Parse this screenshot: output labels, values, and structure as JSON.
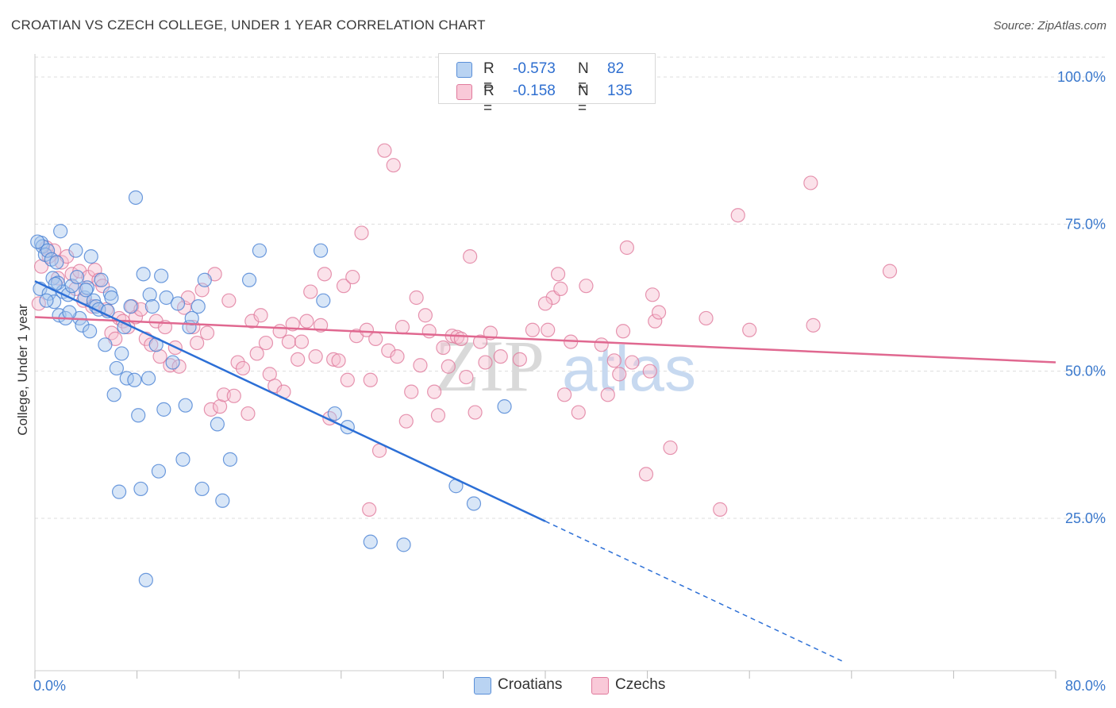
{
  "title": "CROATIAN VS CZECH COLLEGE, UNDER 1 YEAR CORRELATION CHART",
  "source": "Source: ZipAtlas.com",
  "watermark": {
    "zip": "ZIP",
    "atlas": "atlas"
  },
  "legend": {
    "r_label": "R =",
    "n_label": "N =",
    "rows": [
      {
        "r": "-0.573",
        "n": "82",
        "color": "#a9c8ee",
        "border": "#5a8fd8"
      },
      {
        "r": "-0.158",
        "n": "135",
        "color": "#f6b8cb",
        "border": "#e07a9c"
      }
    ]
  },
  "colors": {
    "croatians_fill": "#a9c8ee",
    "croatians_stroke": "#4a82d4",
    "croatians_line": "#2c6fd6",
    "czechs_fill": "#f6bfd0",
    "czechs_stroke": "#e07a9c",
    "czechs_line": "#e06890",
    "grid": "#dddddd",
    "tick_label": "#3a78cc"
  },
  "chart_data": {
    "type": "scatter",
    "title": "CROATIAN VS CZECH COLLEGE, UNDER 1 YEAR CORRELATION CHART",
    "xlabel": "",
    "ylabel": "College, Under 1 year",
    "xlim": [
      0,
      80
    ],
    "ylim": [
      0,
      102
    ],
    "x_tick_labels": [
      "0.0%",
      "80.0%"
    ],
    "y_ticks": [
      25,
      50,
      75,
      100
    ],
    "y_tick_labels": [
      "25.0%",
      "50.0%",
      "75.0%",
      "100.0%"
    ],
    "series": [
      {
        "name": "Croatians",
        "r": -0.573,
        "n": 82,
        "trend": {
          "x0": 0,
          "y0": 65.3,
          "x1": 40,
          "y1": 24.5,
          "dashed_to_x": 63.5,
          "dashed_to_y": 0.5
        },
        "points": [
          [
            0.4,
            64.0
          ],
          [
            0.5,
            71.8
          ],
          [
            0.6,
            71.2
          ],
          [
            0.8,
            69.8
          ],
          [
            1.0,
            70.5
          ],
          [
            1.1,
            63.2
          ],
          [
            1.3,
            69.0
          ],
          [
            1.4,
            65.8
          ],
          [
            1.5,
            61.8
          ],
          [
            1.7,
            68.5
          ],
          [
            1.8,
            65.0
          ],
          [
            1.9,
            59.5
          ],
          [
            2.0,
            73.8
          ],
          [
            2.2,
            63.5
          ],
          [
            2.4,
            59.0
          ],
          [
            2.6,
            63.0
          ],
          [
            2.9,
            64.5
          ],
          [
            3.2,
            70.5
          ],
          [
            3.5,
            59.0
          ],
          [
            3.7,
            57.8
          ],
          [
            3.9,
            62.5
          ],
          [
            4.1,
            64.2
          ],
          [
            4.3,
            56.8
          ],
          [
            4.4,
            69.5
          ],
          [
            4.6,
            62.0
          ],
          [
            4.8,
            61.0
          ],
          [
            5.0,
            60.5
          ],
          [
            5.2,
            65.5
          ],
          [
            5.5,
            54.5
          ],
          [
            5.9,
            63.2
          ],
          [
            6.0,
            62.5
          ],
          [
            6.2,
            46.0
          ],
          [
            6.4,
            50.5
          ],
          [
            6.6,
            29.5
          ],
          [
            6.8,
            53.0
          ],
          [
            7.0,
            57.5
          ],
          [
            7.2,
            48.8
          ],
          [
            7.5,
            61.0
          ],
          [
            7.8,
            48.5
          ],
          [
            7.9,
            79.5
          ],
          [
            8.1,
            42.5
          ],
          [
            8.3,
            30.0
          ],
          [
            8.5,
            66.5
          ],
          [
            8.7,
            14.5
          ],
          [
            8.9,
            48.8
          ],
          [
            9.0,
            63.0
          ],
          [
            9.2,
            61.0
          ],
          [
            9.5,
            54.5
          ],
          [
            9.7,
            33.0
          ],
          [
            9.9,
            66.2
          ],
          [
            10.1,
            43.5
          ],
          [
            10.3,
            62.5
          ],
          [
            10.8,
            51.5
          ],
          [
            11.2,
            61.5
          ],
          [
            11.6,
            35.0
          ],
          [
            11.8,
            44.2
          ],
          [
            12.1,
            57.5
          ],
          [
            12.3,
            59.0
          ],
          [
            12.8,
            61.0
          ],
          [
            13.1,
            30.0
          ],
          [
            13.3,
            65.5
          ],
          [
            14.3,
            41.0
          ],
          [
            14.7,
            28.0
          ],
          [
            15.3,
            35.0
          ],
          [
            16.8,
            65.5
          ],
          [
            17.6,
            70.5
          ],
          [
            22.4,
            70.5
          ],
          [
            22.6,
            62.0
          ],
          [
            23.5,
            42.8
          ],
          [
            24.5,
            40.5
          ],
          [
            26.3,
            21.0
          ],
          [
            28.9,
            20.5
          ],
          [
            33.0,
            30.5
          ],
          [
            34.4,
            27.5
          ],
          [
            36.8,
            44.0
          ],
          [
            0.2,
            72.0
          ],
          [
            0.9,
            62.0
          ],
          [
            2.7,
            60.0
          ],
          [
            3.3,
            66.0
          ],
          [
            1.6,
            64.8
          ],
          [
            4.0,
            63.8
          ],
          [
            5.7,
            60.2
          ]
        ]
      },
      {
        "name": "Czechs",
        "r": -0.158,
        "n": 135,
        "trend": {
          "x0": 0,
          "y0": 59.2,
          "x1": 80,
          "y1": 51.5
        },
        "points": [
          [
            0.3,
            61.5
          ],
          [
            0.5,
            67.8
          ],
          [
            0.9,
            71.0
          ],
          [
            1.1,
            69.5
          ],
          [
            1.5,
            70.5
          ],
          [
            1.8,
            65.8
          ],
          [
            2.1,
            68.5
          ],
          [
            2.5,
            69.5
          ],
          [
            2.9,
            66.5
          ],
          [
            3.2,
            64.0
          ],
          [
            3.5,
            67.0
          ],
          [
            3.8,
            62.0
          ],
          [
            4.2,
            66.0
          ],
          [
            4.5,
            61.0
          ],
          [
            4.7,
            67.2
          ],
          [
            5.0,
            65.5
          ],
          [
            5.3,
            64.5
          ],
          [
            5.6,
            60.5
          ],
          [
            6.0,
            56.5
          ],
          [
            6.3,
            55.5
          ],
          [
            6.6,
            59.0
          ],
          [
            6.9,
            58.5
          ],
          [
            7.3,
            57.5
          ],
          [
            7.6,
            61.0
          ],
          [
            7.9,
            59.2
          ],
          [
            8.3,
            60.5
          ],
          [
            8.7,
            55.5
          ],
          [
            9.1,
            54.5
          ],
          [
            9.5,
            58.5
          ],
          [
            9.8,
            52.5
          ],
          [
            10.2,
            57.5
          ],
          [
            10.6,
            51.0
          ],
          [
            11.0,
            54.0
          ],
          [
            11.3,
            50.8
          ],
          [
            11.7,
            60.8
          ],
          [
            12.0,
            62.5
          ],
          [
            12.4,
            57.5
          ],
          [
            12.7,
            54.8
          ],
          [
            13.1,
            63.8
          ],
          [
            13.5,
            56.5
          ],
          [
            13.8,
            43.5
          ],
          [
            14.1,
            66.5
          ],
          [
            14.5,
            44.0
          ],
          [
            14.8,
            46.0
          ],
          [
            15.2,
            62.0
          ],
          [
            15.6,
            45.8
          ],
          [
            15.9,
            51.5
          ],
          [
            16.3,
            50.5
          ],
          [
            16.7,
            42.8
          ],
          [
            17.0,
            58.5
          ],
          [
            17.4,
            53.0
          ],
          [
            17.7,
            59.5
          ],
          [
            18.1,
            54.8
          ],
          [
            18.4,
            49.5
          ],
          [
            18.8,
            47.5
          ],
          [
            19.2,
            56.8
          ],
          [
            19.5,
            46.5
          ],
          [
            19.9,
            55.0
          ],
          [
            20.2,
            58.0
          ],
          [
            20.6,
            52.0
          ],
          [
            20.9,
            55.0
          ],
          [
            21.3,
            58.5
          ],
          [
            21.6,
            63.5
          ],
          [
            22.0,
            52.5
          ],
          [
            22.4,
            57.8
          ],
          [
            22.7,
            66.5
          ],
          [
            23.1,
            42.0
          ],
          [
            23.4,
            52.0
          ],
          [
            23.8,
            51.8
          ],
          [
            24.2,
            64.5
          ],
          [
            24.5,
            48.5
          ],
          [
            24.9,
            66.0
          ],
          [
            25.2,
            56.0
          ],
          [
            25.6,
            73.5
          ],
          [
            26.0,
            57.0
          ],
          [
            26.3,
            48.5
          ],
          [
            26.7,
            55.5
          ],
          [
            27.0,
            36.5
          ],
          [
            27.4,
            87.5
          ],
          [
            27.7,
            53.5
          ],
          [
            28.1,
            85.0
          ],
          [
            28.4,
            52.5
          ],
          [
            28.8,
            57.5
          ],
          [
            29.1,
            41.5
          ],
          [
            29.5,
            46.5
          ],
          [
            29.9,
            62.5
          ],
          [
            30.2,
            51.0
          ],
          [
            30.6,
            59.5
          ],
          [
            30.9,
            56.8
          ],
          [
            31.3,
            46.5
          ],
          [
            31.6,
            42.5
          ],
          [
            32.0,
            54.0
          ],
          [
            32.4,
            50.8
          ],
          [
            32.7,
            56.0
          ],
          [
            33.1,
            55.8
          ],
          [
            33.4,
            55.5
          ],
          [
            33.8,
            49.0
          ],
          [
            34.1,
            69.5
          ],
          [
            34.5,
            43.0
          ],
          [
            34.9,
            55.0
          ],
          [
            35.3,
            51.5
          ],
          [
            35.7,
            56.5
          ],
          [
            40.6,
            62.5
          ],
          [
            40.2,
            57.0
          ],
          [
            40.0,
            61.5
          ],
          [
            41.0,
            66.5
          ],
          [
            41.2,
            64.0
          ],
          [
            42.0,
            55.0
          ],
          [
            42.6,
            43.0
          ],
          [
            43.2,
            64.5
          ],
          [
            44.4,
            54.5
          ],
          [
            44.9,
            46.0
          ],
          [
            45.4,
            51.8
          ],
          [
            45.8,
            49.5
          ],
          [
            46.1,
            56.8
          ],
          [
            46.4,
            71.0
          ],
          [
            46.8,
            51.5
          ],
          [
            47.9,
            32.5
          ],
          [
            48.4,
            63.0
          ],
          [
            48.6,
            58.5
          ],
          [
            48.9,
            60.0
          ],
          [
            49.8,
            37.0
          ],
          [
            52.6,
            59.0
          ],
          [
            53.7,
            26.5
          ],
          [
            55.1,
            76.5
          ],
          [
            56.0,
            57.0
          ],
          [
            60.8,
            82.0
          ],
          [
            61.0,
            57.8
          ],
          [
            67.0,
            67.0
          ],
          [
            26.2,
            26.5
          ],
          [
            41.5,
            46.0
          ],
          [
            48.2,
            50.0
          ],
          [
            38.0,
            52.0
          ],
          [
            36.5,
            52.5
          ],
          [
            39.0,
            57.0
          ]
        ]
      }
    ]
  },
  "bottom_legend": [
    {
      "label": "Croatians"
    },
    {
      "label": "Czechs"
    }
  ]
}
